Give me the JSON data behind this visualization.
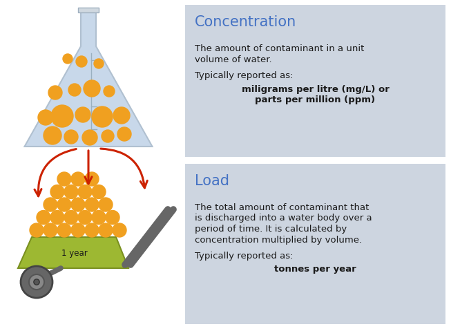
{
  "bg_color": "#ffffff",
  "box_color": "#cdd5e0",
  "title1": "Concentration",
  "title2": "Load",
  "title_color": "#4472c4",
  "text_color": "#1a1a1a",
  "conc_line1": "The amount of contaminant in a unit",
  "conc_line2": "volume of water.",
  "conc_line3": "Typically reported as:",
  "conc_bold1": "miligrams per litre (mg/L) or",
  "conc_bold2": "parts per million (ppm)",
  "load_line1": "The total amount of contaminant that",
  "load_line2": "is discharged into a water body over a",
  "load_line3": "period of time. It is calculated by",
  "load_line4": "concentration multiplied by volume.",
  "load_line5": "Typically reported as:",
  "load_bold1": "tonnes per year",
  "flask_color": "#c8d8ea",
  "flask_edge": "#b0c0d0",
  "circle_color": "#f0a020",
  "arrow_color": "#cc2200",
  "wb_color": "#666666",
  "bin_color": "#9db832",
  "bin_edge": "#7a9020",
  "label_year": "1 year",
  "fig_w": 6.53,
  "fig_h": 4.77,
  "dpi": 100
}
